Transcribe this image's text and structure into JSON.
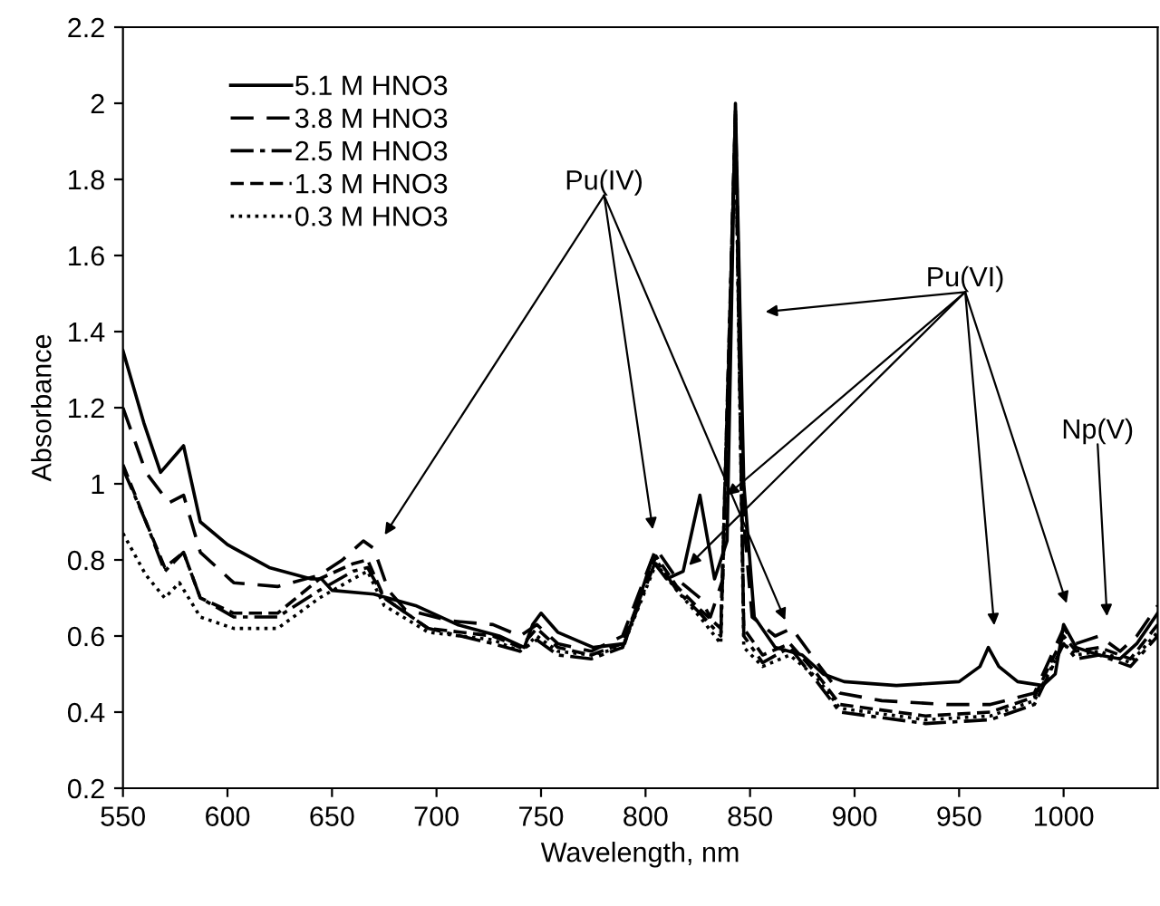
{
  "chart_data": {
    "type": "line",
    "xlabel": "Wavelength, nm",
    "ylabel": "Absorbance",
    "xlim": [
      550,
      1045
    ],
    "xticks": [
      550,
      600,
      650,
      700,
      750,
      800,
      850,
      900,
      950,
      1000
    ],
    "ylim": [
      0.2,
      2.2
    ],
    "yticks": [
      0.2,
      0.4,
      0.6,
      0.8,
      1,
      1.2,
      1.4,
      1.6,
      1.8,
      2,
      2.2
    ],
    "grid": false,
    "legend": "top left",
    "marker": "none",
    "series": [
      {
        "name": "5.1 M HNO3",
        "color": "#000000",
        "line_style": "solid",
        "x": [
          550,
          560,
          568,
          579,
          587,
          600,
          620,
          640,
          645,
          650,
          670,
          690,
          710,
          730,
          742,
          746,
          750,
          758,
          775,
          790,
          803,
          810,
          818,
          826,
          833,
          839,
          843,
          847,
          852,
          862,
          875,
          885,
          895,
          920,
          950,
          960,
          964,
          969,
          978,
          990,
          996,
          1000,
          1006,
          1017,
          1027,
          1035,
          1045
        ],
        "values": [
          1.35,
          1.16,
          1.03,
          1.1,
          0.9,
          0.84,
          0.78,
          0.75,
          0.75,
          0.72,
          0.71,
          0.68,
          0.63,
          0.6,
          0.57,
          0.63,
          0.66,
          0.61,
          0.57,
          0.58,
          0.8,
          0.75,
          0.77,
          0.97,
          0.75,
          0.85,
          2.0,
          1.0,
          0.65,
          0.57,
          0.55,
          0.5,
          0.48,
          0.47,
          0.48,
          0.52,
          0.57,
          0.52,
          0.48,
          0.47,
          0.5,
          0.63,
          0.57,
          0.55,
          0.54,
          0.58,
          0.66
        ]
      },
      {
        "name": "3.8 M HNO3",
        "color": "#000000",
        "line_style": "longdash",
        "x": [
          550,
          561,
          572,
          579,
          587,
          603,
          624,
          644,
          655,
          665,
          670,
          677,
          685,
          706,
          727,
          740,
          748,
          758,
          774,
          789,
          805,
          815,
          826,
          831,
          837,
          843,
          847,
          851,
          862,
          870,
          882,
          893,
          913,
          944,
          965,
          986,
          1000,
          1006,
          1017,
          1027,
          1035,
          1045
        ],
        "values": [
          1.2,
          1.03,
          0.95,
          0.97,
          0.82,
          0.74,
          0.73,
          0.76,
          0.8,
          0.85,
          0.83,
          0.72,
          0.67,
          0.64,
          0.63,
          0.6,
          0.63,
          0.58,
          0.56,
          0.6,
          0.83,
          0.75,
          0.7,
          0.65,
          0.75,
          1.98,
          0.9,
          0.65,
          0.6,
          0.62,
          0.53,
          0.45,
          0.43,
          0.42,
          0.42,
          0.45,
          0.62,
          0.58,
          0.6,
          0.56,
          0.6,
          0.68
        ]
      },
      {
        "name": "2.5 M HNO3",
        "color": "#000000",
        "line_style": "dashdot",
        "x": [
          550,
          561,
          570,
          579,
          587,
          603,
          624,
          644,
          660,
          667,
          675,
          696,
          727,
          740,
          748,
          758,
          774,
          789,
          805,
          815,
          826,
          836,
          843,
          847,
          856,
          869,
          882,
          893,
          934,
          965,
          986,
          1000,
          1006,
          1017,
          1032,
          1045
        ],
        "values": [
          1.04,
          0.9,
          0.77,
          0.82,
          0.7,
          0.65,
          0.65,
          0.72,
          0.77,
          0.78,
          0.7,
          0.62,
          0.58,
          0.56,
          0.59,
          0.55,
          0.54,
          0.57,
          0.8,
          0.72,
          0.66,
          0.6,
          1.96,
          0.6,
          0.53,
          0.57,
          0.48,
          0.4,
          0.37,
          0.38,
          0.42,
          0.58,
          0.54,
          0.55,
          0.52,
          0.6
        ]
      },
      {
        "name": "1.3 M HNO3",
        "color": "#000000",
        "line_style": "dashed",
        "x": [
          550,
          561,
          570,
          579,
          587,
          603,
          624,
          644,
          660,
          667,
          675,
          696,
          727,
          740,
          748,
          758,
          774,
          789,
          805,
          815,
          826,
          836,
          843,
          847,
          856,
          869,
          882,
          893,
          934,
          965,
          986,
          1000,
          1006,
          1017,
          1032,
          1045
        ],
        "values": [
          1.05,
          0.9,
          0.78,
          0.82,
          0.7,
          0.66,
          0.66,
          0.75,
          0.79,
          0.8,
          0.7,
          0.62,
          0.6,
          0.57,
          0.62,
          0.57,
          0.55,
          0.58,
          0.81,
          0.73,
          0.67,
          0.62,
          1.97,
          0.62,
          0.55,
          0.58,
          0.5,
          0.42,
          0.39,
          0.4,
          0.44,
          0.6,
          0.56,
          0.57,
          0.54,
          0.63
        ]
      },
      {
        "name": "0.3 M HNO3",
        "color": "#000000",
        "line_style": "dotted",
        "x": [
          550,
          561,
          570,
          577,
          587,
          603,
          624,
          644,
          660,
          667,
          675,
          696,
          727,
          740,
          748,
          758,
          774,
          789,
          805,
          815,
          826,
          836,
          843,
          847,
          856,
          869,
          882,
          893,
          934,
          965,
          986,
          1000,
          1006,
          1017,
          1032,
          1045
        ],
        "values": [
          0.87,
          0.76,
          0.7,
          0.74,
          0.65,
          0.62,
          0.62,
          0.7,
          0.75,
          0.77,
          0.68,
          0.61,
          0.59,
          0.56,
          0.6,
          0.56,
          0.55,
          0.57,
          0.79,
          0.72,
          0.65,
          0.58,
          1.95,
          0.57,
          0.52,
          0.55,
          0.49,
          0.41,
          0.38,
          0.39,
          0.43,
          0.58,
          0.55,
          0.56,
          0.53,
          0.61
        ]
      }
    ],
    "annotations": [
      "Pu(IV)",
      {
        "text": "Pu(VI)",
        "x": 839,
        "y": 0.97
      },
      "Np(V)"
    ]
  }
}
